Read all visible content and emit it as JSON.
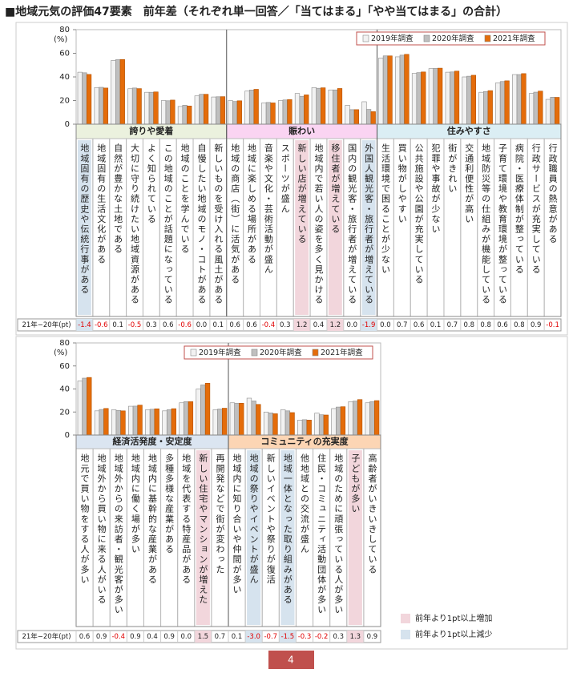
{
  "title": "■地域元気の評価47要素　前年差（それぞれ単一回答／「当てはまる」「やや当てはまる」の合計）",
  "chart_data": [
    {
      "type": "bar",
      "ylabel": "(%)",
      "ylim": [
        0,
        80
      ],
      "yticks": [
        0,
        20,
        40,
        60,
        80
      ],
      "diff_label": "21年−20年(pt)",
      "groups": [
        {
          "name": "誇りや愛着",
          "color": "#ebf1de",
          "categories": [
            "地域固有の歴史や伝統行事がある",
            "地域固有の生活文化がある",
            "自然が豊かな土地である",
            "大切に守り続けたい地域資源がある",
            "よく知られている",
            "この地域のことが話題になっている",
            "地域のことを学んでいる",
            "自慢したい地域のモノ・コトがある",
            "新しいものを受け入れる風土がある"
          ],
          "diffs": [
            "-1.4",
            "-0.6",
            "0.1",
            "-0.5",
            "0.3",
            "0.6",
            "-0.6",
            "0.0",
            "0.1"
          ]
        },
        {
          "name": "賑わい",
          "color": "#fad4f2",
          "categories": [
            "地域の商店（街）に活気がある",
            "地域に楽しめる場所がある",
            "音楽や文化・芸術活動が盛ん",
            "スポーツが盛ん",
            "新しい店が増えている",
            "地域内で若い人の姿を多く見かける",
            "移住者が増えている",
            "国内の観光客・旅行者が増えている",
            "外国人観光客・旅行者が増えている"
          ],
          "diffs": [
            "0.6",
            "0.6",
            "-0.4",
            "0.3",
            "1.2",
            "0.4",
            "1.2",
            "0.0",
            "-1.9"
          ]
        },
        {
          "name": "住みやすさ",
          "color": "#dbeef4",
          "categories": [
            "生活環境で困ることが少ない",
            "買い物がしやすい",
            "公共施設や公園が充実している",
            "犯罪や事故が少ない",
            "街がきれい",
            "交通利便性が高い",
            "地域防災等の仕組みが機能している",
            "子育て環境や教育環境が整っている",
            "病院・医療体制が整っている",
            "行政サービスが充実している",
            "行政職員の熱意がある"
          ],
          "diffs": [
            "0.0",
            "0.7",
            "0.6",
            "0.1",
            "0.7",
            "0.8",
            "0.8",
            "0.6",
            "0.8",
            "0.9",
            "-0.1"
          ]
        }
      ],
      "series": [
        {
          "name": "2019年調査",
          "color": "#f2f2f2",
          "values": [
            44,
            31,
            54,
            30,
            27,
            20,
            15,
            24,
            23,
            20,
            28,
            18,
            20,
            26,
            31,
            29,
            16,
            19,
            56,
            57,
            43,
            47,
            44,
            40,
            27,
            35,
            42,
            26,
            21
          ]
        },
        {
          "name": "2020年調査",
          "color": "#bfbfbf",
          "values": [
            43.5,
            31.2,
            54.6,
            30.6,
            27.0,
            19.8,
            16.0,
            25.3,
            23.2,
            19.2,
            28.9,
            18.4,
            20.5,
            23.6,
            30.4,
            29.0,
            12.3,
            12.5,
            57.8,
            58.4,
            43.6,
            47.3,
            44.2,
            40.6,
            27.6,
            36.1,
            42.0,
            27.1,
            22.8
          ]
        },
        {
          "name": "2021年調査",
          "color": "#e46c0a",
          "values": [
            42.1,
            30.6,
            54.7,
            30.1,
            27.3,
            20.4,
            15.4,
            25.3,
            23.3,
            19.8,
            29.5,
            18.0,
            20.8,
            24.8,
            30.8,
            30.2,
            12.3,
            10.6,
            57.8,
            59.1,
            44.2,
            47.4,
            44.9,
            41.4,
            28.4,
            36.7,
            42.8,
            28.0,
            22.7
          ]
        }
      ]
    },
    {
      "type": "bar",
      "ylabel": "(%)",
      "ylim": [
        0,
        80
      ],
      "yticks": [
        0,
        20,
        40,
        60,
        80
      ],
      "diff_label": "21年−20年(pt)",
      "groups": [
        {
          "name": "経済活発度・安定度",
          "color": "#dbe5f1",
          "categories": [
            "地元で買い物をする人が多い",
            "地域外から買い物に来る人がいる",
            "地域外からの来訪者・観光客が多い",
            "地域内に働く場が多い",
            "地域内に基幹的な産業がある",
            "多種多様な産業がある",
            "地域を代表する特産品がある",
            "新しい住宅やマンションが増えた",
            "再開発などで街が変わった"
          ],
          "diffs": [
            "0.6",
            "0.9",
            "-0.4",
            "0.9",
            "0.4",
            "0.9",
            "0.0",
            "1.5",
            "0.7"
          ]
        },
        {
          "name": "コミュニティの充実度",
          "color": "#fcd5b4",
          "categories": [
            "地域内に知り合いや仲間が多い",
            "地域の祭りやイベントが盛ん",
            "新しいイベントや祭りが復活",
            "地域一体となった取り組みがある",
            "他地域との交流が盛ん",
            "住民・コミュニティ活動団体が多い",
            "地域のために頑張っている人が多い",
            "子どもが多い",
            "高齢者がいきいきしている"
          ],
          "diffs": [
            "0.1",
            "-3.0",
            "-0.7",
            "-1.5",
            "-0.3",
            "-0.2",
            "0.3",
            "1.3",
            "0.9"
          ]
        }
      ],
      "series": [
        {
          "name": "2019年調査",
          "color": "#f2f2f2",
          "values": [
            47,
            21,
            22,
            25,
            22,
            21,
            28,
            40,
            22,
            28,
            32,
            20,
            22,
            13,
            19,
            23,
            29,
            28
          ]
        },
        {
          "name": "2020年調査",
          "color": "#bfbfbf",
          "values": [
            49.4,
            22.2,
            21.4,
            25.1,
            22.4,
            22.0,
            29.0,
            43.5,
            22.6,
            27.5,
            29.6,
            19.2,
            21.0,
            13.3,
            17.6,
            24.3,
            29.5,
            29.0
          ]
        },
        {
          "name": "2021年調査",
          "color": "#e46c0a",
          "values": [
            50.0,
            23.1,
            21.0,
            26.0,
            22.8,
            22.9,
            29.0,
            45.0,
            23.3,
            27.6,
            26.6,
            18.5,
            19.5,
            13.0,
            17.4,
            24.6,
            30.8,
            29.9
          ]
        }
      ]
    }
  ],
  "highlight_legend": [
    "前年より1pt以上増加",
    "前年より1pt以上減少"
  ],
  "page_number": "4"
}
